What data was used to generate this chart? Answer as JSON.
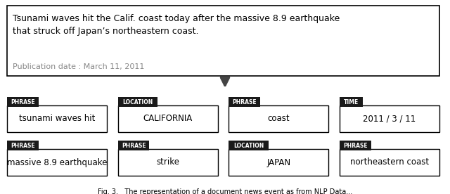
{
  "article_text": "Tsunami waves hit the Calif. coast today after the massive 8.9 earthquake\nthat struck off Japan’s northeastern coast.",
  "pub_date": "Publication date : March 11, 2011",
  "article_text_color": "#000000",
  "pub_date_color": "#888888",
  "bg_color": "#ffffff",
  "box_border_color": "#000000",
  "tag_bg_color": "#1a1a1a",
  "tag_text_color": "#ffffff",
  "entity_text_color": "#000000",
  "entity_box_border_color": "#000000",
  "arrow_color": "#444444",
  "row1_entities": [
    {
      "tag": "PHRASE",
      "text": "tsunami waves hit"
    },
    {
      "tag": "LOCATION",
      "text": "CALIFORNIA"
    },
    {
      "tag": "PHRASE",
      "text": "coast"
    },
    {
      "tag": "TIME",
      "text": "2011 / 3 / 11"
    }
  ],
  "row2_entities": [
    {
      "tag": "PHRASE",
      "text": "massive 8.9 earthquake"
    },
    {
      "tag": "PHRASE",
      "text": "strike"
    },
    {
      "tag": "LOCATION",
      "text": "JAPAN"
    },
    {
      "tag": "PHRASE",
      "text": "northeastern coast"
    }
  ],
  "fig_caption": "Fig. 3.   The representation of a document news event as from NLP Data..."
}
